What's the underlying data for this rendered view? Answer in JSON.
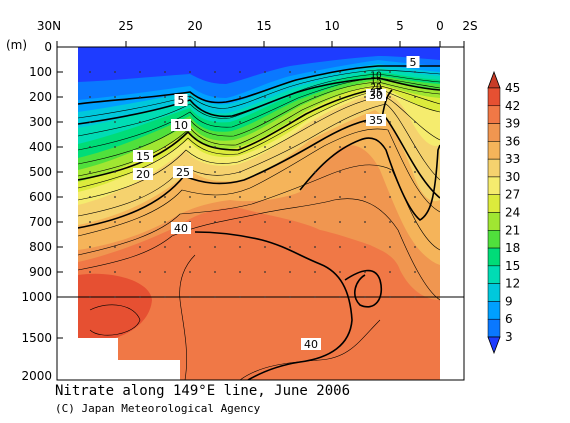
{
  "chart_data": {
    "type": "heatmap",
    "title": "Nitrate along 149°E line, June 2006",
    "credit": "(C) Japan Meteorological Agency",
    "y_unit_label": "(m)",
    "x_ticks": [
      "30N",
      "25",
      "20",
      "15",
      "10",
      "5",
      "0",
      "2S"
    ],
    "y_ticks_upper": [
      "0",
      "100",
      "200",
      "300",
      "400",
      "500",
      "600",
      "700",
      "800",
      "900",
      "1000"
    ],
    "y_ticks_lower": [
      "1500",
      "2000"
    ],
    "colorbar_ticks": [
      "3",
      "6",
      "9",
      "12",
      "15",
      "18",
      "21",
      "24",
      "27",
      "30",
      "33",
      "36",
      "39",
      "42",
      "45"
    ],
    "colorbar_colors": [
      "#1e3cff",
      "#0a78ff",
      "#00a0ff",
      "#00c8dc",
      "#00dcb4",
      "#00dc78",
      "#50e03c",
      "#a0e632",
      "#dceb3c",
      "#f5ec6e",
      "#f5d26e",
      "#f5b45a",
      "#f09650",
      "#f07846",
      "#e65032",
      "#c83c28"
    ],
    "contour_labels": [
      "5",
      "10",
      "15",
      "20",
      "25",
      "30",
      "35",
      "40",
      "5",
      "10",
      "15",
      "20",
      "25",
      "40"
    ],
    "surface_contour_labels": [
      "10",
      "15",
      "20",
      "25"
    ]
  }
}
